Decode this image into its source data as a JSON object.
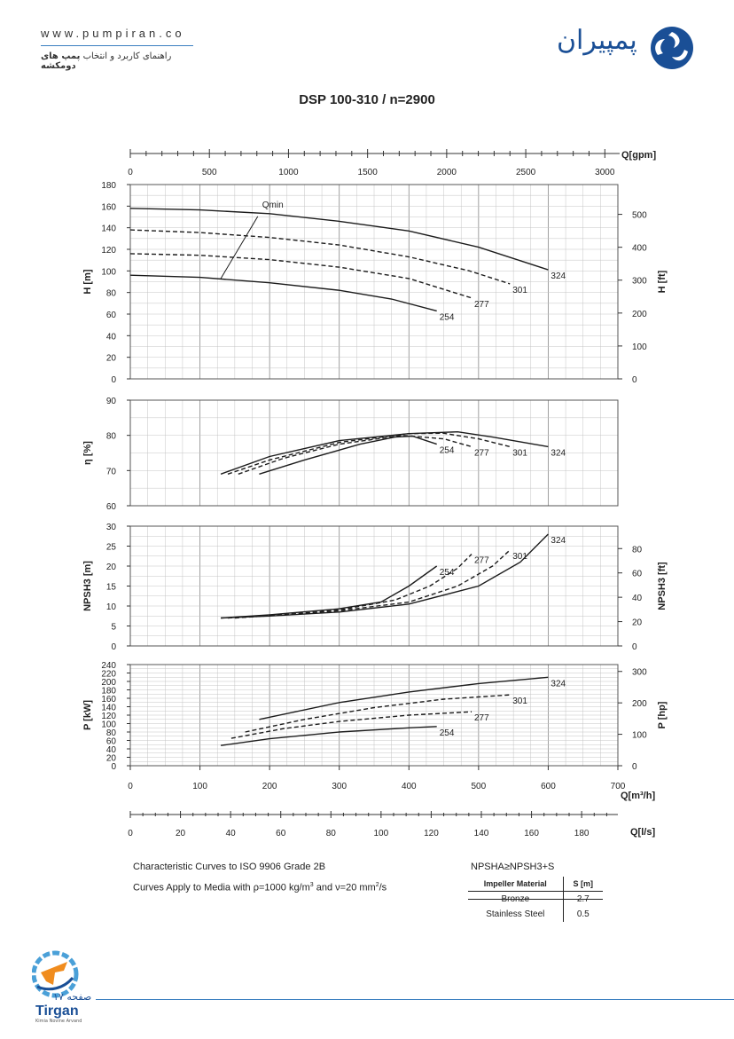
{
  "header": {
    "site_url": "www.pumpiran.co",
    "tagline_prefix": "راهنمای کاربرد و انتخاب ",
    "tagline_bold": "پمپ های دومکشه",
    "brand_name": "پمپیران",
    "accent_color": "#1a4f96"
  },
  "chart_title": "DSP 100-310 / n=2900",
  "notes": {
    "line1": "Characteristic Curves to ISO 9906 Grade 2B",
    "line2_prefix": "Curves Apply to Media with ",
    "rho_text": "ρ=1000 kg/m",
    "rho_sup": "3",
    "and_text": " and ",
    "nu_text": "ν=20 mm",
    "nu_sup": "2",
    "nu_tail": "/s",
    "npsh_relation": "NPSHA≥NPSH3+S"
  },
  "material_table": {
    "headers": [
      "Impeller Material",
      "S [m]"
    ],
    "rows": [
      [
        "Bronze",
        "2.7"
      ],
      [
        "Stainless Steel",
        "0.5"
      ]
    ]
  },
  "footer": {
    "page_label": "صفحه ۱۷",
    "brand": "Tirgan",
    "sub": "Kimia Novine Arvand"
  },
  "chart_data": [
    {
      "type": "line",
      "panel": "head",
      "ylabel": "H [m]",
      "ylabel_right": "H [ft]",
      "ylim": [
        0,
        180
      ],
      "yticks": [
        0,
        20,
        40,
        60,
        80,
        100,
        120,
        140,
        160,
        180
      ],
      "yticks_right": [
        0,
        100,
        200,
        300,
        400,
        500
      ],
      "qmin_label": "Qmin",
      "qmin_line": [
        [
          183,
          150.5
        ],
        [
          130,
          93
        ]
      ],
      "series": [
        {
          "name": "324",
          "style": "solid",
          "points": [
            [
              0,
              158
            ],
            [
              100,
              156.5
            ],
            [
              200,
              153
            ],
            [
              300,
              146
            ],
            [
              400,
              137
            ],
            [
              500,
              122
            ],
            [
              600,
              101
            ]
          ]
        },
        {
          "name": "301",
          "style": "dashed",
          "points": [
            [
              0,
              138
            ],
            [
              100,
              135.5
            ],
            [
              200,
              131
            ],
            [
              300,
              124
            ],
            [
              400,
              113
            ],
            [
              487,
              100
            ],
            [
              545,
              88
            ]
          ]
        },
        {
          "name": "277",
          "style": "dashed",
          "points": [
            [
              0,
              116
            ],
            [
              100,
              114.5
            ],
            [
              200,
              110.5
            ],
            [
              300,
              103.5
            ],
            [
              400,
              93
            ],
            [
              490,
              75
            ]
          ]
        },
        {
          "name": "254",
          "style": "solid",
          "points": [
            [
              0,
              96
            ],
            [
              100,
              94
            ],
            [
              200,
              89
            ],
            [
              300,
              82
            ],
            [
              375,
              74
            ],
            [
              440,
              63
            ]
          ]
        }
      ]
    },
    {
      "type": "line",
      "panel": "efficiency",
      "ylabel": "η [%]",
      "ylim": [
        60,
        90
      ],
      "yticks": [
        60,
        70,
        80,
        90
      ],
      "series": [
        {
          "name": "324",
          "style": "solid",
          "points": [
            [
              130,
              69
            ],
            [
              200,
              74
            ],
            [
              300,
              78.5
            ],
            [
              400,
              80.5
            ],
            [
              470,
              81
            ],
            [
              520,
              79.5
            ],
            [
              600,
              76.8
            ]
          ]
        },
        {
          "name": "301",
          "style": "dashed",
          "points": [
            [
              140,
              69
            ],
            [
              200,
              73
            ],
            [
              300,
              78
            ],
            [
              400,
              80.5
            ],
            [
              450,
              80.6
            ],
            [
              500,
              79
            ],
            [
              545,
              76.8
            ]
          ]
        },
        {
          "name": "277",
          "style": "dashed",
          "points": [
            [
              155,
              69
            ],
            [
              220,
              73.5
            ],
            [
              300,
              77.5
            ],
            [
              390,
              80
            ],
            [
              450,
              79
            ],
            [
              490,
              76.8
            ]
          ]
        },
        {
          "name": "254",
          "style": "solid",
          "points": [
            [
              185,
              69
            ],
            [
              250,
              73
            ],
            [
              330,
              77.5
            ],
            [
              380,
              79.5
            ],
            [
              405,
              79.8
            ],
            [
              440,
              77.5
            ]
          ]
        }
      ]
    },
    {
      "type": "line",
      "panel": "npsh",
      "ylabel": "NPSH3 [m]",
      "ylabel_right": "NPSH3 [ft]",
      "ylim": [
        0,
        30
      ],
      "yticks": [
        0,
        5,
        10,
        15,
        20,
        25,
        30
      ],
      "yticks_right": [
        0,
        20,
        40,
        60,
        80
      ],
      "series": [
        {
          "name": "324",
          "style": "solid",
          "points": [
            [
              130,
              7
            ],
            [
              200,
              7.5
            ],
            [
              300,
              8.5
            ],
            [
              400,
              10.5
            ],
            [
              500,
              15
            ],
            [
              560,
              21
            ],
            [
              600,
              28
            ]
          ]
        },
        {
          "name": "301",
          "style": "dashed",
          "points": [
            [
              140,
              7
            ],
            [
              200,
              7.6
            ],
            [
              300,
              8.8
            ],
            [
              400,
              11
            ],
            [
              470,
              15
            ],
            [
              520,
              20
            ],
            [
              545,
              24
            ]
          ]
        },
        {
          "name": "277",
          "style": "dashed",
          "points": [
            [
              150,
              7
            ],
            [
              220,
              7.8
            ],
            [
              300,
              9
            ],
            [
              380,
              11.5
            ],
            [
              430,
              15
            ],
            [
              470,
              19.5
            ],
            [
              490,
              23
            ]
          ]
        },
        {
          "name": "254",
          "style": "solid",
          "points": [
            [
              130,
              7
            ],
            [
              200,
              7.8
            ],
            [
              300,
              9.3
            ],
            [
              360,
              11
            ],
            [
              400,
              15
            ],
            [
              440,
              20
            ]
          ]
        }
      ]
    },
    {
      "type": "line",
      "panel": "power",
      "ylabel": "P [kW]",
      "ylabel_right": "P [hp]",
      "ylim": [
        0,
        240
      ],
      "yticks": [
        0,
        20,
        40,
        60,
        80,
        100,
        120,
        140,
        160,
        180,
        200,
        220,
        240
      ],
      "yticks_right": [
        0,
        100,
        200,
        300
      ],
      "x_m3h_ticks": [
        0,
        100,
        200,
        300,
        400,
        500,
        600,
        700
      ],
      "x_ls_ticks": [
        0,
        20,
        40,
        60,
        80,
        100,
        120,
        140,
        160,
        180
      ],
      "x_gpm_ticks": [
        0,
        500,
        1000,
        1500,
        2000,
        2500,
        3000
      ],
      "xlabel": "Q[m³/h]",
      "xlabel_ls": "Q[l/s]",
      "xlabel_gpm": "Q[gpm]",
      "series": [
        {
          "name": "324",
          "style": "solid",
          "points": [
            [
              185,
              110
            ],
            [
              300,
              150
            ],
            [
              400,
              175
            ],
            [
              500,
              195
            ],
            [
              600,
              210
            ]
          ]
        },
        {
          "name": "301",
          "style": "dashed",
          "points": [
            [
              165,
              80
            ],
            [
              250,
              110
            ],
            [
              350,
              138
            ],
            [
              450,
              158
            ],
            [
              545,
              168
            ]
          ]
        },
        {
          "name": "277",
          "style": "dashed",
          "points": [
            [
              145,
              65
            ],
            [
              220,
              88
            ],
            [
              300,
              105
            ],
            [
              400,
              120
            ],
            [
              490,
              128
            ]
          ]
        },
        {
          "name": "254",
          "style": "solid",
          "points": [
            [
              130,
              48
            ],
            [
              200,
              64
            ],
            [
              300,
              80
            ],
            [
              400,
              90
            ],
            [
              440,
              93
            ]
          ]
        }
      ]
    }
  ]
}
